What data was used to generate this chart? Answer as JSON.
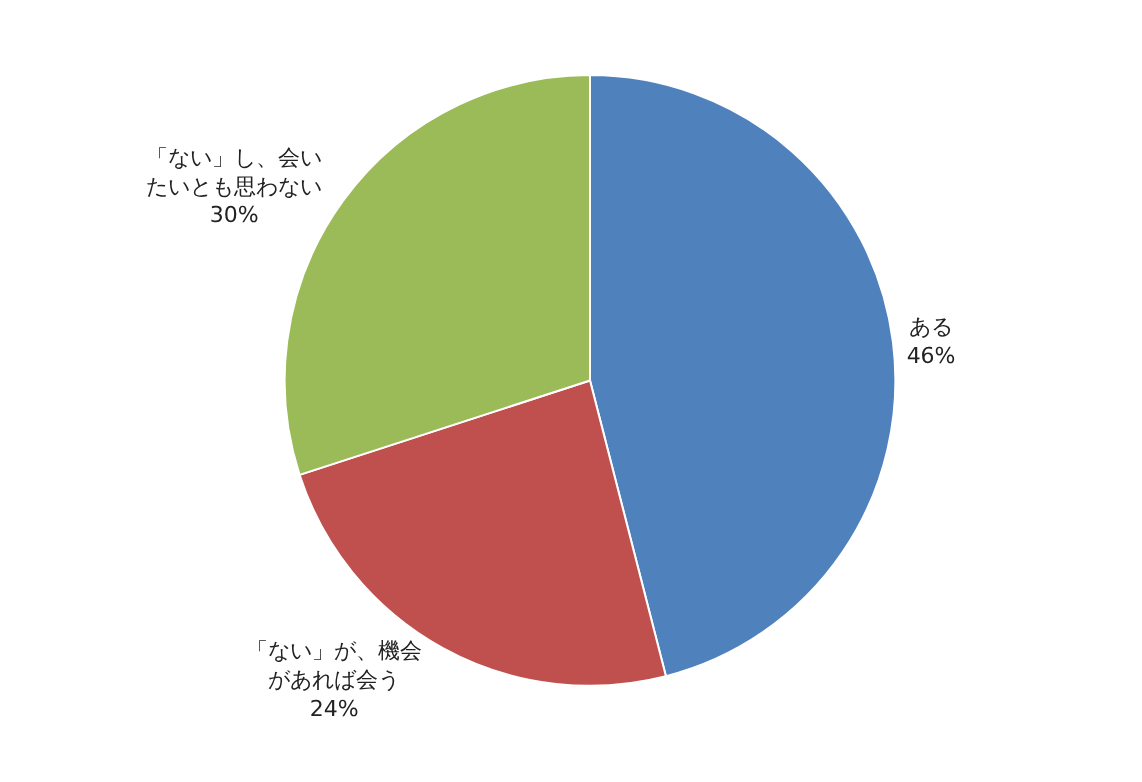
{
  "chart_data": {
    "type": "pie",
    "categories": [
      "ある",
      "「ない」が、機会があれば会う",
      "「ない」し、会いたいとも思わない"
    ],
    "values": [
      46,
      24,
      30
    ],
    "colors": [
      "#4f81bd",
      "#c0504d",
      "#9bbb59"
    ],
    "value_labels": [
      "46%",
      "24%",
      "30%"
    ],
    "legend": false
  }
}
